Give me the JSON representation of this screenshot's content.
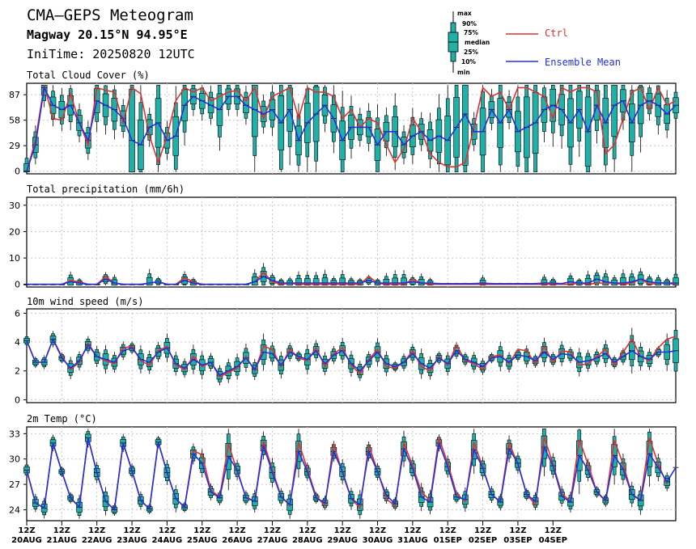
{
  "header": {
    "title": "CMA—GEPS Meteogram",
    "location": "Magway 20.15°N 94.95°E",
    "init": "IniTime: 20250820 12UTC"
  },
  "legend": {
    "box_labels": [
      "max",
      "90%",
      "75%",
      "median",
      "25%",
      "10%",
      "min"
    ],
    "ctrl_label": "Ctrl",
    "mean_label": "Ensemble Mean",
    "ctrl_color": "#e03030",
    "mean_color": "#2030e0",
    "box_color": "#20b0a8"
  },
  "x_labels": [
    {
      "hour": "12Z",
      "date": "20AUG"
    },
    {
      "hour": "12Z",
      "date": "21AUG"
    },
    {
      "hour": "12Z",
      "date": "22AUG"
    },
    {
      "hour": "12Z",
      "date": "23AUG"
    },
    {
      "hour": "12Z",
      "date": "24AUG"
    },
    {
      "hour": "12Z",
      "date": "25AUG"
    },
    {
      "hour": "12Z",
      "date": "26AUG"
    },
    {
      "hour": "12Z",
      "date": "27AUG"
    },
    {
      "hour": "12Z",
      "date": "28AUG"
    },
    {
      "hour": "12Z",
      "date": "29AUG"
    },
    {
      "hour": "12Z",
      "date": "30AUG"
    },
    {
      "hour": "12Z",
      "date": "31AUG"
    },
    {
      "hour": "12Z",
      "date": "01SEP"
    },
    {
      "hour": "12Z",
      "date": "02SEP"
    },
    {
      "hour": "12Z",
      "date": "03SEP"
    },
    {
      "hour": "12Z",
      "date": "04SEP"
    }
  ],
  "chart_data": [
    {
      "type": "line",
      "title": "Total Cloud Cover (%)",
      "x_step_hours": 6,
      "yticks": [
        0,
        29,
        58,
        87
      ],
      "ylim": [
        -3,
        100
      ],
      "series": [
        {
          "name": "Ctrl",
          "values": [
            0,
            35,
            98,
            60,
            58,
            88,
            55,
            30,
            95,
            92,
            90,
            55,
            95,
            88,
            40,
            10,
            40,
            80,
            95,
            90,
            95,
            80,
            85,
            90,
            92,
            80,
            95,
            60,
            85,
            90,
            95,
            60,
            95,
            90,
            90,
            85,
            60,
            70,
            50,
            60,
            55,
            30,
            10,
            25,
            60,
            45,
            20,
            10,
            5,
            5,
            10,
            50,
            95,
            85,
            90,
            70,
            95,
            95,
            90,
            85,
            60,
            95,
            90,
            95,
            95,
            90,
            20,
            30,
            60,
            90,
            95,
            70,
            95,
            75,
            80
          ]
        },
        {
          "name": "Ensemble Mean",
          "values": [
            0,
            30,
            95,
            75,
            70,
            75,
            55,
            35,
            80,
            75,
            70,
            60,
            35,
            30,
            50,
            55,
            35,
            40,
            75,
            85,
            80,
            75,
            70,
            85,
            85,
            75,
            70,
            65,
            70,
            55,
            70,
            35,
            55,
            65,
            75,
            60,
            35,
            50,
            50,
            50,
            30,
            45,
            45,
            30,
            40,
            45,
            35,
            40,
            35,
            50,
            65,
            45,
            45,
            70,
            55,
            70,
            45,
            50,
            55,
            70,
            75,
            70,
            55,
            70,
            45,
            75,
            55,
            75,
            80,
            55,
            75,
            80,
            75,
            65,
            75
          ]
        }
      ]
    },
    {
      "type": "line",
      "title": "Total precipitation (mm/6h)",
      "x_step_hours": 6,
      "yticks": [
        0,
        10,
        20,
        30
      ],
      "ylim": [
        -1,
        33
      ],
      "series": [
        {
          "name": "Ctrl",
          "values": [
            0,
            0,
            0,
            0,
            0,
            1.5,
            1,
            0,
            0,
            3,
            0.5,
            0,
            0,
            0,
            0.5,
            1,
            0,
            0,
            2.5,
            1,
            0,
            0,
            0,
            0,
            0,
            0,
            1,
            4.5,
            1,
            0,
            0.5,
            0,
            0,
            0,
            0,
            0,
            0,
            0,
            0,
            3,
            0.5,
            0,
            0,
            0,
            2,
            0.5,
            0,
            0,
            0,
            0,
            0,
            0,
            0,
            0,
            0,
            0,
            0,
            0,
            0,
            0,
            0,
            0,
            0,
            0.5,
            0,
            0.5,
            0.5,
            0.5,
            0,
            0.5,
            2,
            0,
            0.5,
            0.5,
            0
          ]
        },
        {
          "name": "Ensemble Mean",
          "values": [
            0,
            0,
            0,
            0,
            0,
            1,
            0.5,
            0,
            0,
            2,
            0.5,
            0,
            0,
            0,
            0.5,
            1,
            0,
            0,
            1.5,
            0.5,
            0,
            0,
            0,
            0,
            0,
            0,
            1,
            3,
            1.5,
            0.5,
            0.5,
            0.5,
            0.5,
            0.5,
            0.5,
            0.5,
            0.5,
            0.5,
            0.5,
            1.5,
            0.5,
            0.5,
            0.5,
            0.5,
            1,
            0.5,
            0.5,
            0.3,
            0.3,
            0.3,
            0.3,
            0.3,
            0.5,
            0.3,
            0.3,
            0.3,
            0.3,
            0.3,
            0.3,
            0.5,
            0.5,
            0.3,
            1,
            0.5,
            0.5,
            2,
            1,
            0.5,
            0.5,
            1,
            2,
            1,
            0.5,
            0.5,
            0.5
          ]
        }
      ]
    },
    {
      "type": "line",
      "title": "10m wind speed (m/s)",
      "x_step_hours": 6,
      "yticks": [
        0,
        2,
        4,
        6
      ],
      "ylim": [
        -0.2,
        6.3
      ],
      "series": [
        {
          "name": "Ctrl",
          "values": [
            4.1,
            2.6,
            2.6,
            4.2,
            3,
            2.1,
            2.6,
            3.9,
            3,
            2.7,
            2.5,
            3.6,
            3.7,
            2.7,
            2.4,
            3.4,
            3.7,
            2.4,
            2.1,
            3,
            2.3,
            2.6,
            1.6,
            1.9,
            2.2,
            3,
            2,
            3.7,
            3.5,
            2.3,
            3.5,
            2.9,
            2.7,
            3.6,
            2.3,
            3.2,
            3.6,
            2.4,
            1.8,
            2.8,
            3.5,
            2.3,
            2.2,
            2.6,
            3.4,
            2.3,
            2,
            3,
            2.4,
            3.8,
            2.7,
            2.5,
            2.1,
            3,
            3.1,
            2.5,
            3.5,
            3.4,
            2.5,
            3.7,
            2.6,
            3.4,
            3.3,
            2.4,
            2.5,
            3,
            3.5,
            2.4,
            3.3,
            4.2,
            3,
            2.7,
            3.6,
            4.2,
            4.4
          ]
        },
        {
          "name": "Ensemble Mean",
          "values": [
            4.1,
            2.6,
            2.6,
            4.2,
            2.9,
            2.2,
            2.7,
            3.8,
            3,
            2.8,
            2.6,
            3.4,
            3.6,
            2.8,
            2.6,
            3.3,
            3.6,
            2.5,
            2.2,
            2.8,
            2.4,
            2.6,
            1.7,
            2,
            2.3,
            2.9,
            2.1,
            3.3,
            3.2,
            2.4,
            3.3,
            3,
            2.8,
            3.4,
            2.5,
            3.1,
            3.4,
            2.5,
            2,
            2.7,
            3.3,
            2.5,
            2.3,
            2.6,
            3.2,
            2.5,
            2.2,
            2.9,
            2.5,
            3.4,
            2.8,
            2.6,
            2.3,
            2.9,
            3,
            2.6,
            3.1,
            3,
            2.7,
            3.3,
            2.8,
            3.2,
            3.1,
            2.6,
            2.7,
            2.9,
            3.2,
            2.6,
            3,
            3.4,
            3,
            2.8,
            3.3,
            3.3,
            3.4
          ]
        }
      ]
    },
    {
      "type": "line",
      "title": "2m Temp (°C)",
      "x_step_hours": 6,
      "yticks": [
        24,
        27,
        30,
        33
      ],
      "ylim": [
        22.7,
        33.8
      ],
      "series": [
        {
          "name": "Ctrl",
          "values": [
            28.7,
            24.8,
            24.2,
            31.9,
            28.5,
            25.4,
            24.3,
            32.5,
            28.4,
            25,
            24,
            31.9,
            28.6,
            25.1,
            24.1,
            32,
            28.4,
            25.3,
            24.3,
            31,
            30.5,
            26.3,
            25.5,
            31.8,
            28.5,
            25.5,
            25,
            32.1,
            28.7,
            25.6,
            24.5,
            32,
            28.8,
            25.6,
            24.5,
            31.8,
            28.3,
            25.3,
            24.2,
            31.6,
            28.6,
            25.3,
            24.4,
            31.9,
            29.2,
            26.1,
            25.1,
            32.5,
            29.5,
            25.9,
            25,
            32,
            29,
            25.8,
            25,
            31.9,
            29.4,
            25.8,
            24.6,
            32.6,
            29.4,
            25.9,
            25,
            32.3,
            29.4,
            26.1,
            25,
            32.2,
            29.4,
            25.8,
            25.2,
            32.5,
            29.4,
            27
          ]
        },
        {
          "name": "Ensemble Mean",
          "values": [
            28.7,
            24.8,
            24.2,
            31.9,
            28.5,
            25.4,
            24.3,
            32.5,
            28.4,
            25,
            24,
            31.9,
            28.6,
            25.1,
            24.1,
            32,
            28.4,
            25.3,
            24.3,
            30.6,
            29.5,
            26.1,
            25.4,
            30.3,
            28.7,
            25.4,
            25,
            31.6,
            28.4,
            25.5,
            24.6,
            30.9,
            28.5,
            25.4,
            24.8,
            30.9,
            28.5,
            25.3,
            24.6,
            30.9,
            28.5,
            25.7,
            24.7,
            31.2,
            28.9,
            25.5,
            24.9,
            31.9,
            29.1,
            25.5,
            25.2,
            31.1,
            28.9,
            25.8,
            24.9,
            31.2,
            29.5,
            25.8,
            25,
            31.4,
            29.2,
            25.6,
            24.9,
            30.4,
            28.7,
            26.1,
            25.1,
            30.4,
            28.8,
            25.8,
            25.1,
            30.6,
            29,
            27.3,
            29
          ]
        }
      ]
    }
  ]
}
